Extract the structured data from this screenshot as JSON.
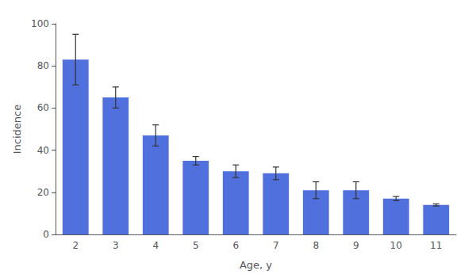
{
  "chart_data": {
    "type": "bar",
    "xlabel": "Age, y",
    "ylabel": "Incidence",
    "categories": [
      "2",
      "3",
      "4",
      "5",
      "6",
      "7",
      "8",
      "9",
      "10",
      "11"
    ],
    "values": [
      83,
      65,
      47,
      35,
      30,
      29,
      21,
      21,
      17,
      14
    ],
    "yerr": [
      12,
      5,
      5,
      2,
      3,
      3,
      4,
      4,
      1,
      0.5
    ],
    "ylim": [
      0,
      100
    ],
    "yticks": [
      0,
      20,
      40,
      60,
      80,
      100
    ],
    "grid": false
  }
}
